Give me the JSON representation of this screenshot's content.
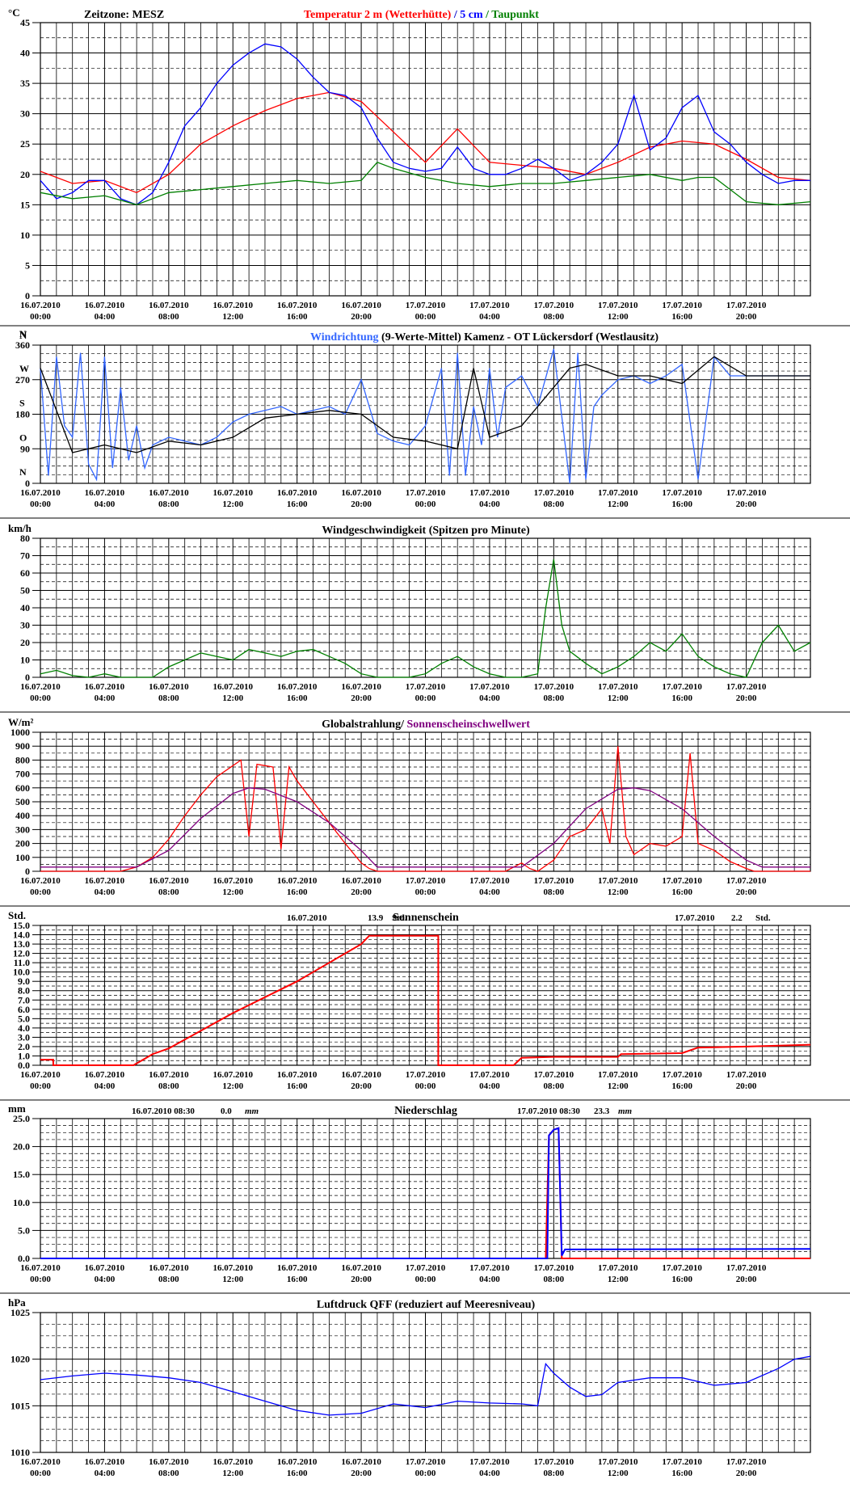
{
  "x_axis": {
    "ticks": [
      [
        "16.07.2010",
        "00:00"
      ],
      [
        "16.07.2010",
        "04:00"
      ],
      [
        "16.07.2010",
        "08:00"
      ],
      [
        "16.07.2010",
        "12:00"
      ],
      [
        "16.07.2010",
        "16:00"
      ],
      [
        "16.07.2010",
        "20:00"
      ],
      [
        "17.07.2010",
        "00:00"
      ],
      [
        "17.07.2010",
        "04:00"
      ],
      [
        "17.07.2010",
        "08:00"
      ],
      [
        "17.07.2010",
        "12:00"
      ],
      [
        "17.07.2010",
        "16:00"
      ],
      [
        "17.07.2010",
        "20:00"
      ]
    ],
    "range_hours": [
      0,
      48
    ]
  },
  "chart_data": [
    {
      "id": "temperature",
      "type": "line",
      "unit_label": "°C",
      "header_left": "Zeitzone: MESZ",
      "title_parts": [
        {
          "text": "Temperatur 2 m (Wetterhütte)",
          "color": "#ff0000"
        },
        {
          "text": "  /  ",
          "color": "#0000cc"
        },
        {
          "text": "5 cm",
          "color": "#0000ff"
        },
        {
          "text": " / ",
          "color": "#008000"
        },
        {
          "text": "Taupunkt",
          "color": "#008000"
        }
      ],
      "ylim": [
        0,
        45
      ],
      "yticks": [
        "0",
        "5",
        "10",
        "15",
        "20",
        "25",
        "30",
        "35",
        "40",
        "45"
      ],
      "series": [
        {
          "color": "#ff0000",
          "x": [
            0,
            2,
            4,
            6,
            8,
            10,
            12,
            14,
            16,
            18,
            20,
            22,
            24,
            26,
            28,
            30,
            32,
            34,
            36,
            38,
            40,
            42,
            44,
            46,
            48
          ],
          "y": [
            20.5,
            18.5,
            19,
            17,
            20,
            25,
            28,
            30.5,
            32.5,
            33.5,
            32,
            27,
            22,
            27.5,
            22,
            21.5,
            21,
            20,
            22,
            24.5,
            25.5,
            25,
            22.5,
            19.5,
            19
          ]
        },
        {
          "color": "#0000ff",
          "x": [
            0,
            1,
            2,
            3,
            4,
            5,
            6,
            7,
            8,
            9,
            10,
            11,
            12,
            13,
            14,
            15,
            16,
            17,
            18,
            19,
            20,
            21,
            22,
            23,
            24,
            25,
            26,
            27,
            28,
            29,
            30,
            31,
            32,
            33,
            34,
            35,
            36,
            37,
            38,
            39,
            40,
            41,
            42,
            43,
            44,
            45,
            46,
            47,
            48
          ],
          "y": [
            19,
            16,
            17,
            19,
            19,
            16,
            15,
            17,
            22,
            28,
            31,
            35,
            38,
            40,
            41.5,
            41,
            39,
            36,
            33.5,
            33,
            31,
            26,
            22,
            21,
            20.5,
            21,
            24.5,
            21,
            20,
            20,
            21,
            22.5,
            21,
            19,
            20,
            22,
            25,
            33,
            24,
            26,
            31,
            33,
            27,
            25,
            22,
            20,
            18.5,
            19,
            19
          ]
        },
        {
          "color": "#008000",
          "x": [
            0,
            2,
            4,
            6,
            8,
            10,
            12,
            14,
            16,
            18,
            20,
            21,
            22,
            24,
            26,
            28,
            30,
            32,
            34,
            36,
            38,
            40,
            41,
            42,
            44,
            46,
            48
          ],
          "y": [
            17,
            16,
            16.5,
            15,
            17,
            17.5,
            18,
            18.5,
            19,
            18.5,
            19,
            22,
            21,
            19.5,
            18.5,
            18,
            18.5,
            18.5,
            19,
            19.5,
            20,
            19,
            19.5,
            19.5,
            15.5,
            15,
            15.5
          ]
        }
      ]
    },
    {
      "id": "wind_direction",
      "type": "line",
      "header_left_unit": "N",
      "title_parts": [
        {
          "text": "Windrichtung",
          "color": "#3366ff"
        },
        {
          "text": " (9-Werte-Mittel)",
          "color": "#000000"
        },
        {
          "text": "          Kamenz - OT Lückersdorf (Westlausitz)",
          "color": "#000000"
        }
      ],
      "ylim": [
        0,
        360
      ],
      "yticks": [
        "0",
        "90",
        "180",
        "270",
        "360"
      ],
      "ylabels_dir": [
        "N",
        "O",
        "S",
        "W",
        "N"
      ],
      "series": [
        {
          "color": "#3366ff",
          "x": [
            0,
            0.5,
            1,
            1.5,
            2,
            2.5,
            3,
            3.5,
            4,
            4.5,
            5,
            5.5,
            6,
            6.5,
            7,
            8,
            9,
            10,
            11,
            12,
            13,
            14,
            15,
            16,
            17,
            18,
            19,
            20,
            21,
            22,
            23,
            24,
            25,
            25.5,
            26,
            26.5,
            27,
            27.5,
            28,
            28.5,
            29,
            30,
            31,
            32,
            33,
            33.5,
            34,
            34.5,
            35,
            36,
            37,
            38,
            39,
            40,
            41,
            42,
            43,
            44,
            45,
            46,
            47,
            48
          ],
          "y": [
            300,
            20,
            330,
            150,
            120,
            340,
            50,
            10,
            330,
            40,
            250,
            60,
            150,
            40,
            100,
            120,
            110,
            100,
            120,
            160,
            180,
            190,
            200,
            180,
            190,
            200,
            180,
            270,
            130,
            110,
            100,
            150,
            300,
            20,
            340,
            20,
            200,
            100,
            300,
            120,
            250,
            280,
            200,
            350,
            0,
            340,
            10,
            200,
            230,
            270,
            280,
            260,
            280,
            310,
            10,
            330,
            280,
            280,
            280,
            280,
            280,
            280
          ]
        },
        {
          "color": "#000000",
          "x": [
            0,
            2,
            4,
            6,
            8,
            10,
            12,
            14,
            16,
            18,
            20,
            22,
            24,
            26,
            27,
            28,
            30,
            32,
            33,
            34,
            36,
            38,
            40,
            42,
            44,
            46,
            48
          ],
          "y": [
            300,
            80,
            100,
            80,
            110,
            100,
            120,
            170,
            180,
            190,
            180,
            120,
            110,
            90,
            300,
            120,
            150,
            250,
            300,
            310,
            280,
            280,
            260,
            330,
            280,
            280,
            280
          ]
        }
      ]
    },
    {
      "id": "wind_speed",
      "type": "line",
      "unit_label": "km/h",
      "title_parts": [
        {
          "text": "Windgeschwindigkeit (Spitzen pro Minute)",
          "color": "#000000"
        }
      ],
      "ylim": [
        0,
        80
      ],
      "yticks": [
        "0",
        "10",
        "20",
        "30",
        "40",
        "50",
        "60",
        "70",
        "80"
      ],
      "series": [
        {
          "color": "#008000",
          "x": [
            0,
            1,
            2,
            3,
            4,
            5,
            6,
            7,
            8,
            9,
            10,
            11,
            12,
            13,
            14,
            15,
            16,
            17,
            18,
            19,
            20,
            21,
            22,
            23,
            24,
            25,
            26,
            27,
            28,
            29,
            30,
            31,
            31.5,
            32,
            32.5,
            33,
            34,
            35,
            36,
            37,
            38,
            39,
            40,
            41,
            42,
            43,
            44,
            45,
            46,
            47,
            48
          ],
          "y": [
            2,
            4,
            1,
            0,
            2,
            0,
            0,
            0,
            6,
            10,
            14,
            12,
            10,
            16,
            14,
            12,
            15,
            16,
            12,
            8,
            2,
            0,
            0,
            0,
            2,
            8,
            12,
            6,
            2,
            0,
            0,
            2,
            40,
            68,
            30,
            15,
            8,
            2,
            6,
            12,
            20,
            15,
            25,
            12,
            6,
            2,
            0,
            20,
            30,
            15,
            20
          ]
        }
      ]
    },
    {
      "id": "global_radiation",
      "type": "line",
      "unit_label": "W/m²",
      "title_parts": [
        {
          "text": "Globalstrahlung",
          "color": "#000000"
        },
        {
          "text": "/ ",
          "color": "#000000"
        },
        {
          "text": "Sonnenscheinschwellwert",
          "color": "#800080"
        }
      ],
      "ylim": [
        0,
        1000
      ],
      "yticks": [
        "0",
        "100",
        "200",
        "300",
        "400",
        "500",
        "600",
        "700",
        "800",
        "900",
        "1000"
      ],
      "series": [
        {
          "color": "#ff0000",
          "x": [
            0,
            5,
            6,
            7,
            8,
            9,
            10,
            11,
            12,
            12.5,
            13,
            13.5,
            14,
            14.5,
            15,
            15.5,
            16,
            17,
            18,
            19,
            20,
            20.5,
            21,
            29,
            30,
            30.5,
            31,
            32,
            33,
            34,
            35,
            35.5,
            36,
            36.5,
            37,
            38,
            39,
            40,
            40.5,
            41,
            42,
            43,
            44,
            44.5,
            45,
            48
          ],
          "y": [
            0,
            0,
            30,
            100,
            230,
            400,
            550,
            680,
            760,
            800,
            250,
            770,
            760,
            750,
            160,
            750,
            650,
            500,
            350,
            200,
            60,
            20,
            0,
            0,
            60,
            20,
            0,
            80,
            250,
            300,
            450,
            200,
            900,
            250,
            120,
            200,
            180,
            250,
            850,
            200,
            150,
            70,
            20,
            0,
            0,
            0
          ]
        },
        {
          "color": "#800080",
          "x": [
            0,
            6,
            8,
            10,
            12,
            13,
            14,
            16,
            18,
            20,
            21,
            29,
            30,
            32,
            34,
            36,
            37,
            38,
            40,
            42,
            44,
            45,
            48
          ],
          "y": [
            30,
            30,
            150,
            380,
            560,
            600,
            590,
            500,
            350,
            150,
            30,
            30,
            30,
            200,
            450,
            590,
            600,
            580,
            450,
            250,
            80,
            30,
            30
          ]
        }
      ]
    },
    {
      "id": "sunshine",
      "type": "line",
      "unit_label": "Std.",
      "title_parts": [
        {
          "text": "Sonnenschein",
          "color": "#000000"
        }
      ],
      "annotations": [
        {
          "date": "16.07.2010",
          "value": "13.9",
          "unit": "Std."
        },
        {
          "date": "17.07.2010",
          "value": "2.2",
          "unit": "Std."
        }
      ],
      "ylim": [
        0,
        15
      ],
      "yticks": [
        "0.0",
        "1.0",
        "2.0",
        "3.0",
        "4.0",
        "5.0",
        "6.0",
        "7.0",
        "8.0",
        "9.0",
        "10.0",
        "11.0",
        "12.0",
        "13.0",
        "14.0",
        "15.0"
      ],
      "series": [
        {
          "color": "#ff0000",
          "x": [
            0,
            0.8,
            0.8,
            5.8,
            7,
            8,
            12,
            16,
            20,
            20.5,
            24.8,
            24.8,
            29.5,
            30,
            32,
            36,
            36.2,
            40,
            41,
            44,
            48
          ],
          "y": [
            0.6,
            0.6,
            0,
            0,
            1.2,
            1.8,
            5.6,
            9,
            13,
            13.9,
            13.9,
            0,
            0,
            0.8,
            0.9,
            0.9,
            1.2,
            1.3,
            1.9,
            2,
            2.2
          ]
        }
      ]
    },
    {
      "id": "precipitation",
      "type": "line",
      "unit_label": "mm",
      "title_parts": [
        {
          "text": "Niederschlag",
          "color": "#000000"
        }
      ],
      "annotations": [
        {
          "date": "16.07.2010 08:30",
          "value": "0.0",
          "unit": "mm"
        },
        {
          "date": "17.07.2010 08:30",
          "value": "23.3",
          "unit": "mm"
        }
      ],
      "ylim": [
        0,
        25
      ],
      "yticks": [
        "0.0",
        "5.0",
        "10.0",
        "15.0",
        "20.0",
        "25.0"
      ],
      "series": [
        {
          "color": "#ff0000",
          "x": [
            0,
            31.5,
            31.7,
            32,
            32.3,
            32.5,
            48
          ],
          "y": [
            0,
            0,
            22,
            23,
            23.3,
            0,
            0
          ]
        },
        {
          "color": "#0000ff",
          "x": [
            0,
            31.6,
            31.7,
            32,
            32.3,
            32.5,
            32.7,
            48
          ],
          "y": [
            0,
            0,
            22,
            23,
            23.3,
            0.5,
            1.6,
            1.7
          ]
        }
      ]
    },
    {
      "id": "pressure",
      "type": "line",
      "unit_label": "hPa",
      "title_parts": [
        {
          "text": "Luftdruck QFF (reduziert auf Meeresniveau)",
          "color": "#000000"
        }
      ],
      "ylim": [
        1010,
        1025
      ],
      "yticks": [
        "1010",
        "1015",
        "1020",
        "1025"
      ],
      "series": [
        {
          "color": "#0000ff",
          "x": [
            0,
            2,
            4,
            6,
            8,
            10,
            12,
            14,
            16,
            18,
            20,
            22,
            24,
            26,
            28,
            30,
            31,
            31.5,
            32,
            33,
            34,
            35,
            36,
            38,
            40,
            42,
            44,
            46,
            47,
            48
          ],
          "y": [
            1017.8,
            1018.2,
            1018.5,
            1018.3,
            1018,
            1017.5,
            1016.5,
            1015.5,
            1014.5,
            1014,
            1014.2,
            1015.2,
            1014.8,
            1015.5,
            1015.3,
            1015.2,
            1015,
            1019.5,
            1018.5,
            1017,
            1016,
            1016.2,
            1017.5,
            1018,
            1018,
            1017.2,
            1017.5,
            1019,
            1020,
            1020.3
          ]
        }
      ]
    }
  ]
}
